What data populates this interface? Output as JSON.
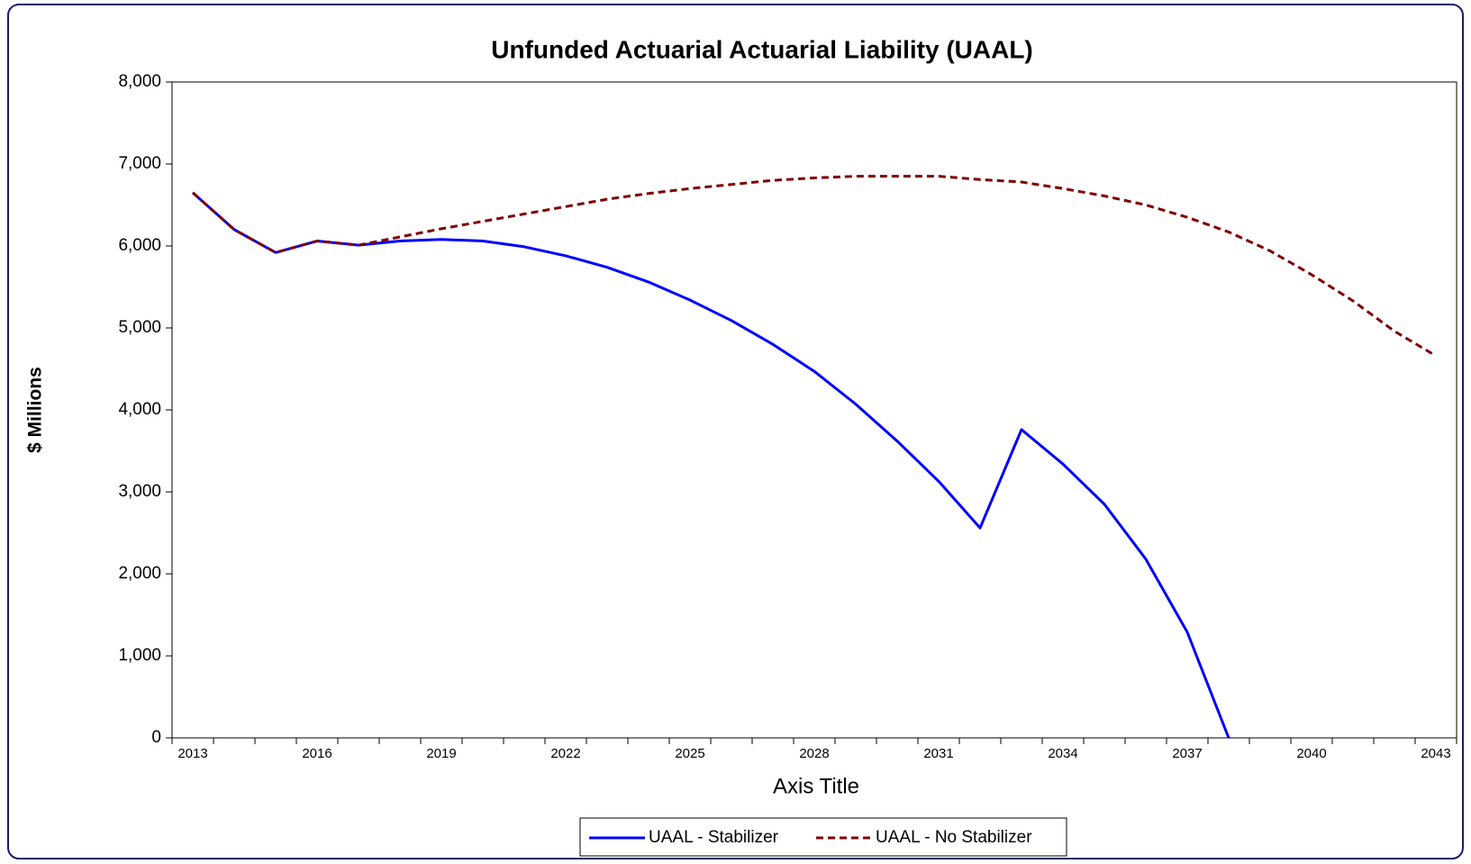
{
  "chart_data": {
    "type": "line",
    "title": "Unfunded Actuarial Actuarial Liability (UAAL)",
    "x_label": "Axis Title",
    "y_label": "$ Millions",
    "categories": [
      "2013",
      null,
      null,
      "2016",
      null,
      null,
      "2019",
      null,
      null,
      "2022",
      null,
      null,
      "2025",
      null,
      null,
      "2028",
      null,
      null,
      "2031",
      null,
      null,
      "2034",
      null,
      null,
      "2037",
      null,
      null,
      "2040",
      null,
      null,
      "2043"
    ],
    "series": [
      {
        "name": "UAAL - Stabilizer",
        "color": "#0000ff",
        "line_style": "solid",
        "values": [
          6650,
          6200,
          5920,
          6060,
          6010,
          6060,
          6080,
          6060,
          5990,
          5880,
          5740,
          5560,
          5340,
          5090,
          4800,
          4470,
          4070,
          3620,
          3130,
          2560,
          3760,
          3340,
          2850,
          2180,
          1290,
          0,
          null,
          null,
          null,
          null,
          null
        ]
      },
      {
        "name": "UAAL - No Stabilizer",
        "color": "#800000",
        "line_style": "dashed",
        "values": [
          6650,
          6200,
          5920,
          6060,
          6010,
          6110,
          6210,
          6300,
          6390,
          6480,
          6570,
          6640,
          6700,
          6750,
          6800,
          6830,
          6850,
          6850,
          6850,
          6810,
          6780,
          6700,
          6610,
          6500,
          6350,
          6170,
          5940,
          5650,
          5330,
          4960,
          4660
        ]
      }
    ],
    "ylim": [
      0,
      8000
    ],
    "yticks": [
      0,
      {
        "value": 1000,
        "label": "1,000"
      },
      {
        "value": 2000,
        "label": "2,000"
      },
      {
        "value": 3000,
        "label": "3,000"
      },
      {
        "value": 4000,
        "label": "4,000"
      },
      {
        "value": 5000,
        "label": "5,000"
      },
      {
        "value": 6000,
        "label": "6,000"
      },
      {
        "value": 7000,
        "label": "7,000"
      },
      {
        "value": 8000,
        "label": "8,000"
      }
    ],
    "grid": false,
    "legend": "bottom"
  }
}
